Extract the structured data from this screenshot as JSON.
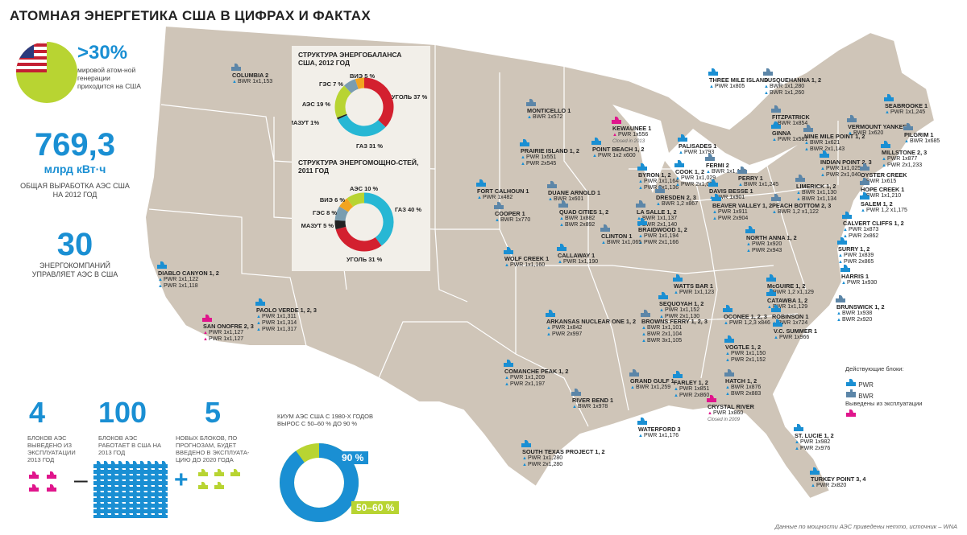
{
  "title": "АТОМНАЯ ЭНЕРГЕТИКА США В ЦИФРАХ И ФАКТАХ",
  "stats": {
    "share_value": ">30%",
    "share_caption": "мировой атом-ной генерации приходится на США",
    "generation_value": "769,3",
    "generation_unit": "млрд кВт·ч",
    "generation_caption": "ОБЩАЯ ВЫРАБОТКА АЭС США НА 2012 ГОД",
    "companies_value": "30",
    "companies_caption": "ЭНЕРГОКОМПАНИЙ УПРАВЛЯЕТ АЭС В США"
  },
  "bottom": {
    "closed_value": "4",
    "closed_caption": "БЛОКОВ АЭС ВЫВЕДЕНО ИЗ ЭКСПЛУАТАЦИИ 2013 ГОД",
    "working_value": "100",
    "working_caption": "БЛОКОВ АЭС РАБОТАЕТ В США НА 2013 ГОД",
    "new_value": "5",
    "new_caption": "НОВЫХ БЛОКОВ, ПО ПРОГНОЗАМ, БУДЕТ ВВЕДЕНО В ЭКСПЛУАТА-ЦИЮ ДО 2020 ГОДА",
    "minus": "–",
    "plus": "+",
    "kium_caption": "КИУМ АЭС США С 1980-Х ГОДОВ ВЫРОС С 50–60 % ДО 90 %",
    "kium_high": "90 %",
    "kium_low": "50–60 %",
    "kium_high_value": 90,
    "kium_low_value": 55
  },
  "energy_balance": {
    "title": "СТРУКТУРА ЭНЕРГОБАЛАНСА США, 2012 ГОД",
    "items": [
      {
        "label": "УГОЛЬ 37 %",
        "value": 37,
        "color": "#d3202f"
      },
      {
        "label": "ГАЗ 31 %",
        "value": 31,
        "color": "#27b7d4"
      },
      {
        "label": "МАЗУТ 1%",
        "value": 1,
        "color": "#222222"
      },
      {
        "label": "АЭС 19 %",
        "value": 19,
        "color": "#b8d432"
      },
      {
        "label": "ГЭС 7 %",
        "value": 7,
        "color": "#7a9db0"
      },
      {
        "label": "ВИЭ 5 %",
        "value": 5,
        "color": "#f2a421"
      }
    ]
  },
  "capacity_structure": {
    "title": "СТРУКТУРА ЭНЕРГОМОЩНО-СТЕЙ, 2011 ГОД",
    "items": [
      {
        "label": "ГАЗ 40 %",
        "value": 40,
        "color": "#27b7d4"
      },
      {
        "label": "УГОЛЬ 31 %",
        "value": 31,
        "color": "#d3202f"
      },
      {
        "label": "МАЗУТ 5 %",
        "value": 5,
        "color": "#222222"
      },
      {
        "label": "ГЭС 8 %",
        "value": 8,
        "color": "#7a9db0"
      },
      {
        "label": "ВИЭ 6 %",
        "value": 6,
        "color": "#f2a421"
      },
      {
        "label": "АЭС 10 %",
        "value": 10,
        "color": "#b8d432"
      }
    ]
  },
  "legend": {
    "title": "Действующие блоки:",
    "pwr": "PWR",
    "bwr": "BWR",
    "closed": "Выведены из эксплуатации"
  },
  "footnote": "Данные по мощности АЭС приведены нетто, источник – WNA",
  "colors": {
    "map": "#cfc5b8",
    "border": "#ffffff",
    "accent": "#1a8fd3",
    "closed": "#e0158c",
    "green": "#b8d432"
  },
  "plants": [
    {
      "name": "COLUMBIA 2",
      "lines": [
        "BWR 1x1,153"
      ]
    },
    {
      "name": "DIABLO CANYON 1, 2",
      "lines": [
        "PWR 1x1,122",
        "PWR 1x1,118"
      ]
    },
    {
      "name": "SAN ONOFRE 2, 3",
      "lines": [
        "PWR 1x1,127",
        "PWR 1x1,127"
      ],
      "closed": true
    },
    {
      "name": "PAOLO VERDE 1, 2, 3",
      "lines": [
        "PWR 1x1,311",
        "PWR 1x1,314",
        "PWR 1x1,317"
      ]
    },
    {
      "name": "MONTICELLO 1",
      "lines": [
        "BWR 1x572"
      ]
    },
    {
      "name": "KEWAUNEE 1",
      "lines": [
        "PWR 1x556"
      ],
      "closed": true,
      "note": "Closed in 2013"
    },
    {
      "name": "POINT BEACH 1, 2",
      "lines": [
        "PWR 1x2 x600"
      ]
    },
    {
      "name": "PRAIRIE ISLAND 1, 2",
      "lines": [
        "PWR 1x551",
        "PWR 2x545"
      ]
    },
    {
      "name": "FORT CALHOUN 1",
      "lines": [
        "PWR 1x482"
      ]
    },
    {
      "name": "COOPER 1",
      "lines": [
        "BWR 1x770"
      ]
    },
    {
      "name": "DUANE ARNOLD 1",
      "lines": [
        "BWR 1x601"
      ]
    },
    {
      "name": "QUAD CITIES 1, 2",
      "lines": [
        "BWR 1x882",
        "BWR 2x892"
      ]
    },
    {
      "name": "WOLF CREEK 1",
      "lines": [
        "PWR 1x1,160"
      ]
    },
    {
      "name": "CALLAWAY 1",
      "lines": [
        "PWR 1x1,190"
      ]
    },
    {
      "name": "BYRON 1, 2",
      "lines": [
        "PWR 1x1,164",
        "PWR 2x1,136"
      ]
    },
    {
      "name": "LA SALLE 1, 2",
      "lines": [
        "BWR 1x1,137",
        "BWR 2x1,140"
      ]
    },
    {
      "name": "BRAIDWOOD 1, 2",
      "lines": [
        "PWR 1x1,194",
        "PWR 2x1,166"
      ]
    },
    {
      "name": "CLINTON 1",
      "lines": [
        "BWR 1x1,065"
      ]
    },
    {
      "name": "DRESDEN 2, 3",
      "lines": [
        "BWR 1,2 x867"
      ]
    },
    {
      "name": "COOK 1, 2",
      "lines": [
        "PWR 1x1,029",
        "PWR 2x1,077"
      ]
    },
    {
      "name": "PALISADES 1",
      "lines": [
        "PWR 1x793"
      ]
    },
    {
      "name": "FERMI 2",
      "lines": [
        "BWR 1x1,122"
      ]
    },
    {
      "name": "DAVIS BESSE 1",
      "lines": [
        "PWR 1x901"
      ]
    },
    {
      "name": "PERRY 1",
      "lines": [
        "BWR 1x1,245"
      ]
    },
    {
      "name": "BEAVER VALLEY 1, 2",
      "lines": [
        "PWR 1x911",
        "PWR 2x904"
      ]
    },
    {
      "name": "THREE MILE ISLAND",
      "lines": [
        "PWR 1x805"
      ]
    },
    {
      "name": "SUSQUEHANNA 1, 2",
      "lines": [
        "BWR 1x1,280",
        "BWR 1x1,260"
      ]
    },
    {
      "name": "FITZPATRICK",
      "lines": [
        "BWR 1x854"
      ]
    },
    {
      "name": "GINNA",
      "lines": [
        "PWR 1x581"
      ]
    },
    {
      "name": "NINE MILE POINT 1, 2",
      "lines": [
        "BWR 1x621",
        "BWR 2x1,143"
      ]
    },
    {
      "name": "SEABROOKE 1",
      "lines": [
        "PWR 1x1,245"
      ]
    },
    {
      "name": "VERMOUNT YANKEE",
      "lines": [
        "BWR 1x620"
      ]
    },
    {
      "name": "PILGRIM 1",
      "lines": [
        "BWR 1x685"
      ]
    },
    {
      "name": "MILLSTONE 2, 3",
      "lines": [
        "PWR 1x877",
        "PWR 2x1,233"
      ]
    },
    {
      "name": "INDIAN POINT 2, 3",
      "lines": [
        "PWR 1x1,025",
        "PWR 2x1,040"
      ]
    },
    {
      "name": "OYSTER CREEK",
      "lines": [
        "BWR 1x615"
      ]
    },
    {
      "name": "HOPE CREEK 1",
      "lines": [
        "BWR 1x1,210"
      ]
    },
    {
      "name": "SALEM 1, 2",
      "lines": [
        "PWR 1,2 x1,175"
      ]
    },
    {
      "name": "LIMERICK 1, 2",
      "lines": [
        "BWR 1x1,130",
        "BWR 1x1,134"
      ]
    },
    {
      "name": "PEACH BOTTOM 2, 3",
      "lines": [
        "BWR 1,2 x1,122"
      ]
    },
    {
      "name": "CALVERT CLIFFS 1, 2",
      "lines": [
        "PWR 1x873",
        "PWR 2x862"
      ]
    },
    {
      "name": "NORTH ANNA 1, 2",
      "lines": [
        "PWR 1x920",
        "PWR 2x943"
      ]
    },
    {
      "name": "SURRY 1, 2",
      "lines": [
        "PWR 1x839",
        "PWR 2x865"
      ]
    },
    {
      "name": "HARRIS 1",
      "lines": [
        "PWR 1x930"
      ]
    },
    {
      "name": "WATTS BAR 1",
      "lines": [
        "PWR 1x1,123"
      ]
    },
    {
      "name": "McGUIRE 1, 2",
      "lines": [
        "PWR 1,2 x1,129"
      ]
    },
    {
      "name": "CATAWBA 1, 2",
      "lines": [
        "PWR 1x1,129"
      ]
    },
    {
      "name": "SEQUOYAH 1, 2",
      "lines": [
        "PWR 1x1,152",
        "PWR 2x1,130"
      ]
    },
    {
      "name": "BRUNSWICK 1, 2",
      "lines": [
        "BWR 1x938",
        "BWR 2x920"
      ]
    },
    {
      "name": "ROBINSON 1",
      "lines": [
        "PWR 1x724"
      ]
    },
    {
      "name": "OCONEE 1, 2, 3",
      "lines": [
        "PWR 1,2,3 x846"
      ]
    },
    {
      "name": "V.C. SUMMER 1",
      "lines": [
        "PWR 1x966"
      ]
    },
    {
      "name": "BROWNS FERRY 1, 2, 3",
      "lines": [
        "BWR 1x1,101",
        "BWR 2x1,104",
        "BWR 3x1,105"
      ]
    },
    {
      "name": "ARKANSAS NUCLEAR ONE 1, 2",
      "lines": [
        "PWR 1x842",
        "PWR 2x997"
      ]
    },
    {
      "name": "VOGTLE 1, 2",
      "lines": [
        "PWR 1x1,150",
        "PWR 2x1,152"
      ]
    },
    {
      "name": "COMANCHE PEAK 1, 2",
      "lines": [
        "PWR 1x1,209",
        "PWR 2x1,197"
      ]
    },
    {
      "name": "GRAND GULF 1",
      "lines": [
        "BWR 1x1,259"
      ]
    },
    {
      "name": "FARLEY 1, 2",
      "lines": [
        "PWR 1x851",
        "PWR 2x860"
      ]
    },
    {
      "name": "HATCH 1, 2",
      "lines": [
        "BWR 1x876",
        "BWR 2x883"
      ]
    },
    {
      "name": "RIVER BEND 1",
      "lines": [
        "BWR 1x978"
      ]
    },
    {
      "name": "CRYSTAL RIVER",
      "lines": [
        "PWR 1x860"
      ],
      "closed": true,
      "note": "Closed in 2009"
    },
    {
      "name": "WATERFORD 3",
      "lines": [
        "PWR 1x1,176"
      ]
    },
    {
      "name": "SOUTH TEXAS PROJECT 1, 2",
      "lines": [
        "PWR 1x1,280",
        "PWR 2x1,280"
      ]
    },
    {
      "name": "ST. LUCIE 1, 2",
      "lines": [
        "PWR 1x982",
        "PWR 2x976"
      ]
    },
    {
      "name": "TURKEY POINT 3, 4",
      "lines": [
        "PWR 2x820"
      ]
    }
  ]
}
